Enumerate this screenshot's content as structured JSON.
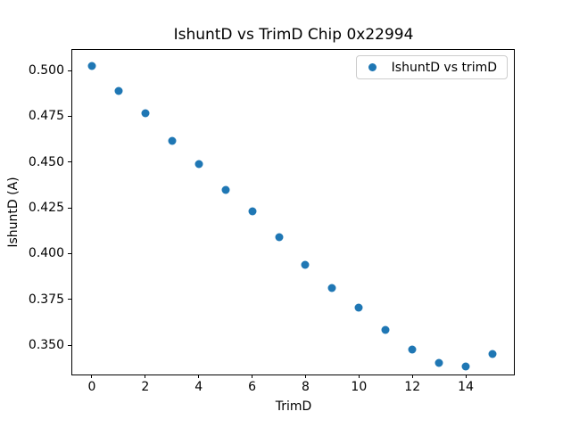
{
  "figure": {
    "background": "#ffffff",
    "spine_color": "#000000",
    "text_color": "#000000",
    "legend_border_color": "#cccccc"
  },
  "chart_data": {
    "type": "scatter",
    "title": "IshuntD vs TrimD Chip 0x22994",
    "xlabel": "TrimD",
    "ylabel": "IshuntD (A)",
    "legend": [
      "IshuntD vs trimD"
    ],
    "legend_position": "upper right",
    "grid": false,
    "marker": "circle",
    "marker_color": "#1f77b4",
    "x": [
      0,
      1,
      2,
      3,
      4,
      5,
      6,
      7,
      8,
      9,
      10,
      11,
      12,
      13,
      14,
      15
    ],
    "y": [
      0.5025,
      0.4888,
      0.4765,
      0.4617,
      0.449,
      0.4347,
      0.4232,
      0.409,
      0.394,
      0.3812,
      0.3705,
      0.3582,
      0.3475,
      0.3405,
      0.3386,
      0.345
    ],
    "xlim": [
      -0.733,
      15.8
    ],
    "ylim": [
      0.334,
      0.5112
    ],
    "xticks": [
      0,
      2,
      4,
      6,
      8,
      10,
      12,
      14
    ],
    "xtick_labels": [
      "0",
      "2",
      "4",
      "6",
      "8",
      "10",
      "12",
      "14"
    ],
    "yticks": [
      0.35,
      0.375,
      0.4,
      0.425,
      0.45,
      0.475,
      0.5
    ],
    "ytick_labels": [
      "0.350",
      "0.375",
      "0.400",
      "0.425",
      "0.450",
      "0.475",
      "0.500"
    ]
  }
}
